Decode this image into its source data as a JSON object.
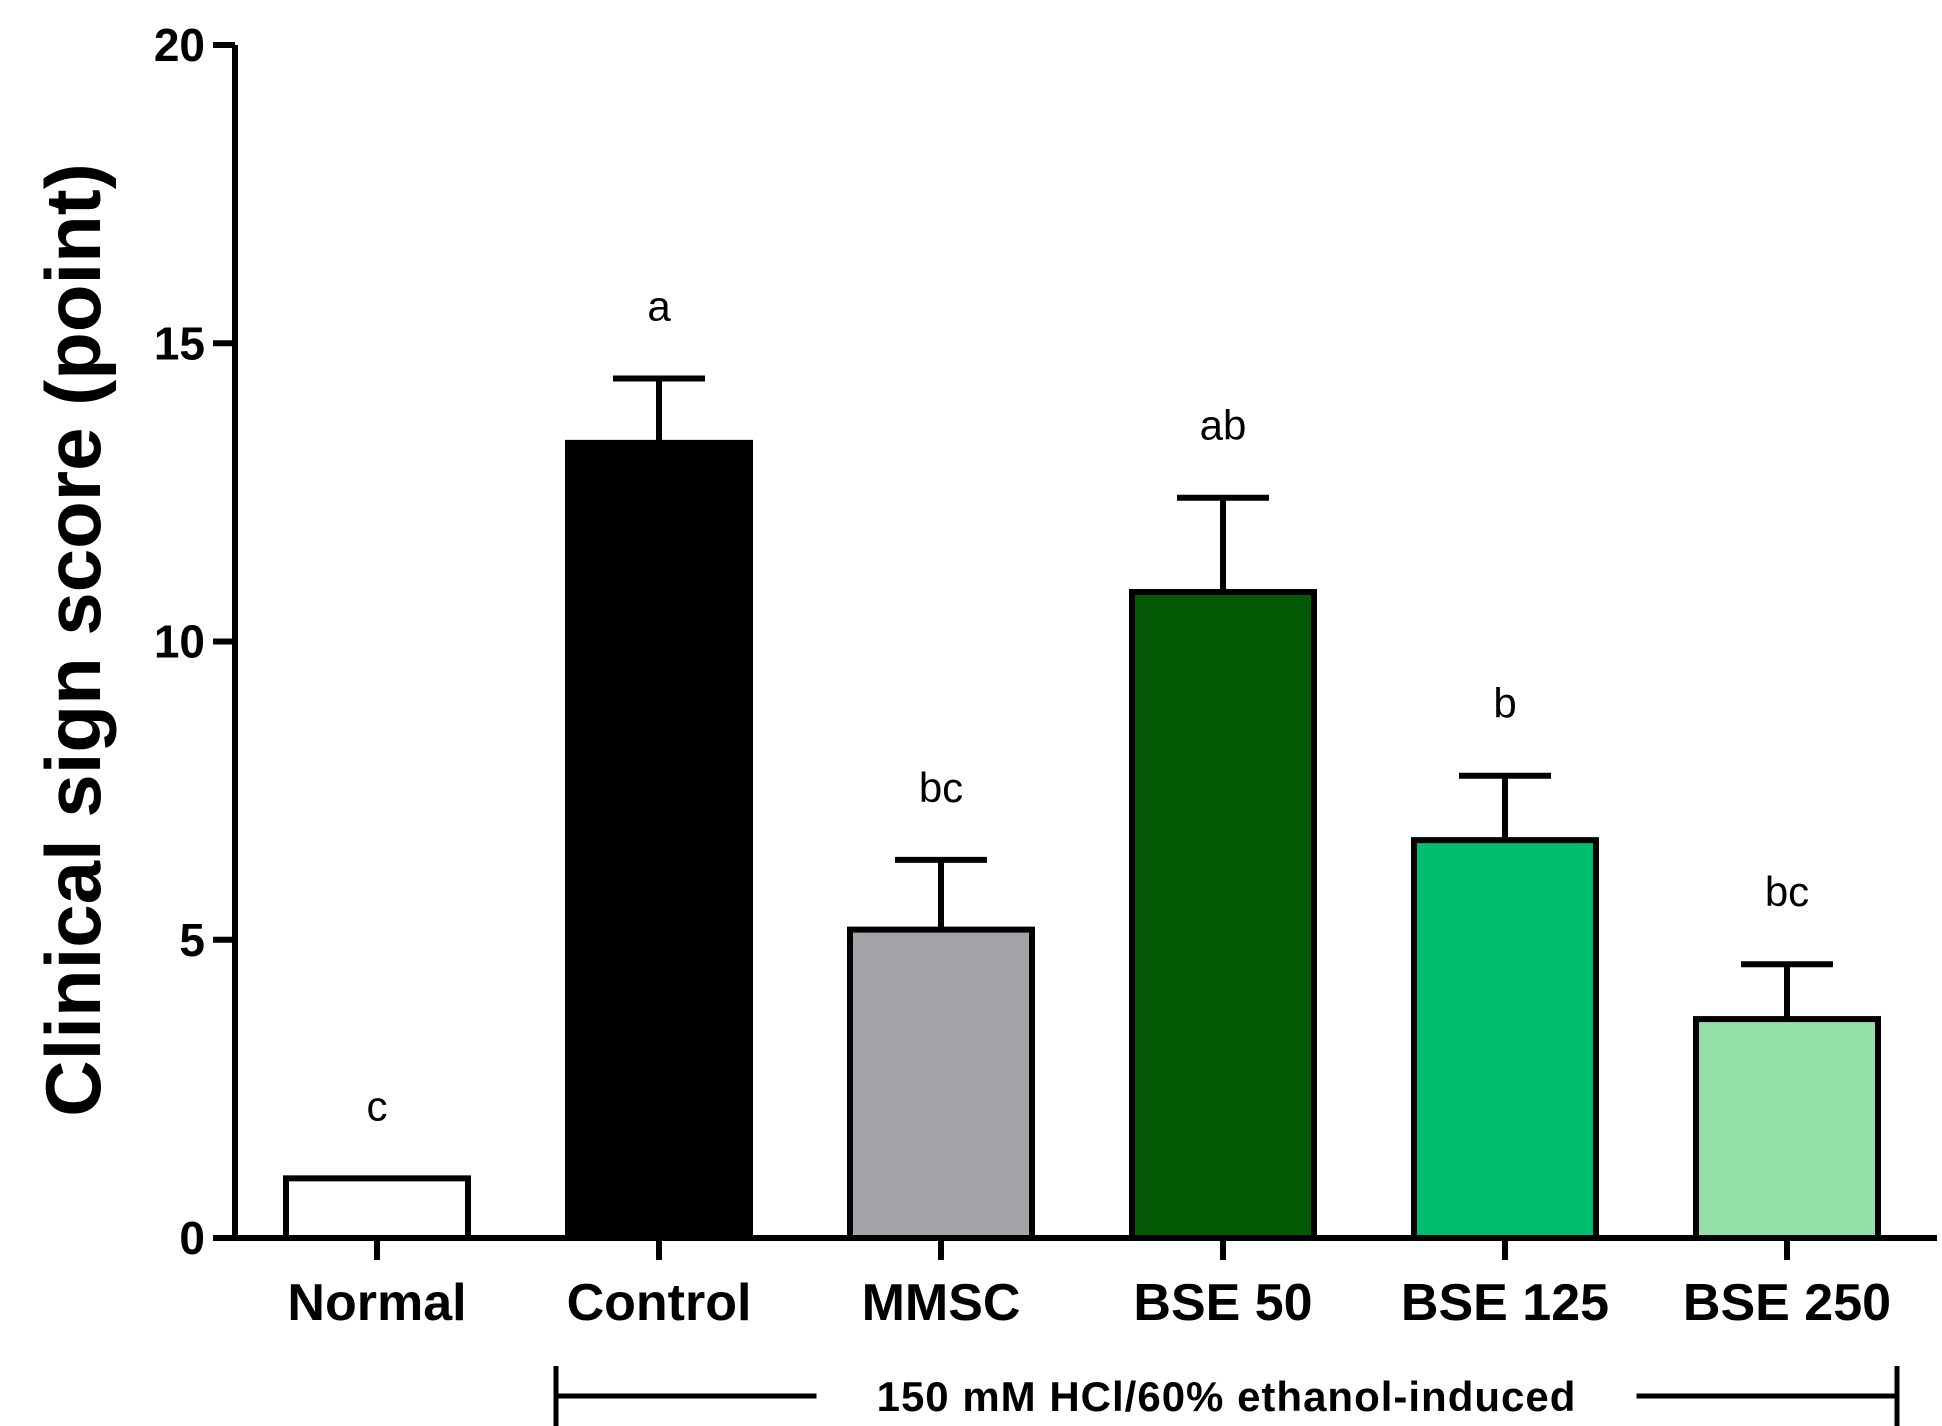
{
  "chart_data": {
    "type": "bar",
    "title": "",
    "xlabel": "",
    "ylabel": "Clinical sign score (point)",
    "ylim": [
      0,
      20
    ],
    "yticks": [
      0,
      5,
      10,
      15,
      20
    ],
    "grid": false,
    "categories": [
      "Normal",
      "Control",
      "MMSC",
      "BSE 50",
      "BSE 125",
      "BSE 250"
    ],
    "values": [
      1.0,
      13.33,
      5.17,
      10.83,
      6.67,
      3.67
    ],
    "errors": [
      0,
      1.08,
      1.17,
      1.58,
      1.08,
      0.92
    ],
    "significance": [
      "c",
      "a",
      "bc",
      "ab",
      "b",
      "bc"
    ],
    "colors": [
      "#ffffff",
      "#000000",
      "#a3a4a8",
      "#045a04",
      "#00be70",
      "#95dfa8"
    ],
    "group_bracket": {
      "label": "150 mM HCl/60% ethanol-induced",
      "from_category": "Control",
      "to_category": "BSE 250"
    }
  }
}
